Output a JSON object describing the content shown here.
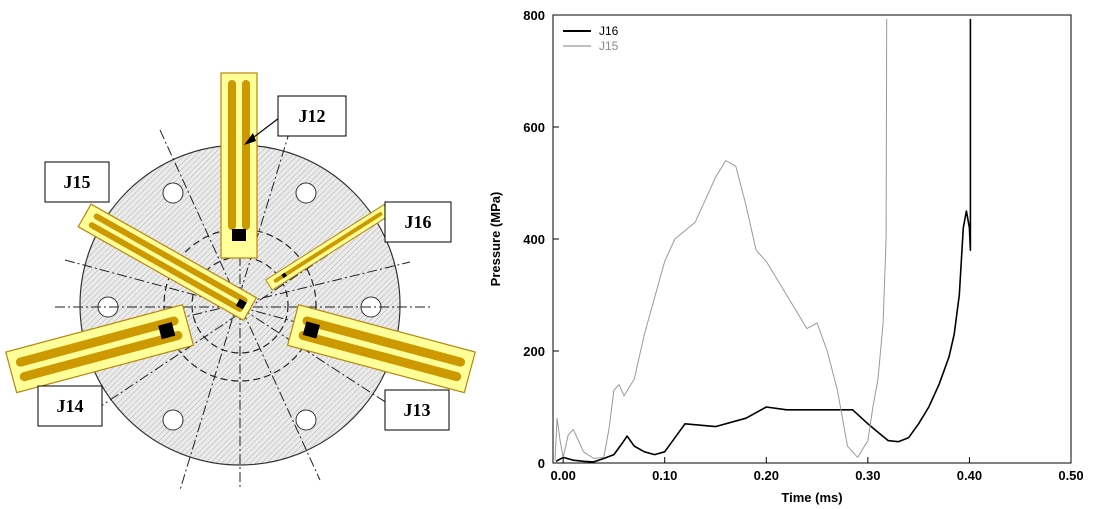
{
  "diagram": {
    "labels": [
      "J12",
      "J15",
      "J16",
      "J14",
      "J13"
    ],
    "colors": {
      "strip_fill": "#ffff99",
      "strip_edge": "#b8860b",
      "track": "#cc9900",
      "disk_fill": "#e6e6e6"
    }
  },
  "chart_data": {
    "type": "line",
    "xlabel": "Time (ms)",
    "ylabel": "Pressure (MPa)",
    "xlim": [
      -0.01,
      0.5
    ],
    "ylim": [
      0,
      800
    ],
    "xticks": [
      "0.00",
      "0.10",
      "0.20",
      "0.30",
      "0.40",
      "0.50"
    ],
    "yticks": [
      "0",
      "200",
      "400",
      "600",
      "800"
    ],
    "legend_position": "top-left",
    "grid": false,
    "series": [
      {
        "name": "J16",
        "color": "#000000",
        "x": [
          -0.007,
          0.0,
          0.01,
          0.02,
          0.03,
          0.04,
          0.05,
          0.058,
          0.063,
          0.07,
          0.08,
          0.09,
          0.1,
          0.12,
          0.15,
          0.18,
          0.2,
          0.22,
          0.25,
          0.27,
          0.285,
          0.3,
          0.31,
          0.32,
          0.33,
          0.34,
          0.35,
          0.36,
          0.37,
          0.38,
          0.385,
          0.39,
          0.394,
          0.397,
          0.4,
          0.401,
          0.401,
          0.401
        ],
        "y": [
          3,
          10,
          5,
          3,
          2,
          8,
          15,
          35,
          48,
          30,
          20,
          15,
          20,
          70,
          65,
          80,
          100,
          95,
          95,
          95,
          95,
          70,
          55,
          40,
          38,
          45,
          70,
          100,
          140,
          190,
          230,
          300,
          420,
          450,
          420,
          380,
          580,
          793
        ]
      },
      {
        "name": "J15",
        "color": "#999999",
        "x": [
          -0.008,
          -0.006,
          -0.003,
          0.0,
          0.005,
          0.01,
          0.015,
          0.02,
          0.03,
          0.04,
          0.045,
          0.05,
          0.055,
          0.06,
          0.07,
          0.08,
          0.1,
          0.11,
          0.13,
          0.15,
          0.16,
          0.17,
          0.18,
          0.19,
          0.2,
          0.22,
          0.24,
          0.25,
          0.26,
          0.27,
          0.28,
          0.29,
          0.3,
          0.305,
          0.31,
          0.315,
          0.318,
          0.3185
        ],
        "y": [
          5,
          80,
          40,
          10,
          50,
          60,
          40,
          20,
          8,
          10,
          60,
          130,
          140,
          120,
          150,
          230,
          360,
          400,
          430,
          510,
          540,
          530,
          460,
          380,
          360,
          300,
          240,
          250,
          200,
          130,
          30,
          10,
          40,
          100,
          150,
          250,
          400,
          793
        ]
      }
    ]
  }
}
